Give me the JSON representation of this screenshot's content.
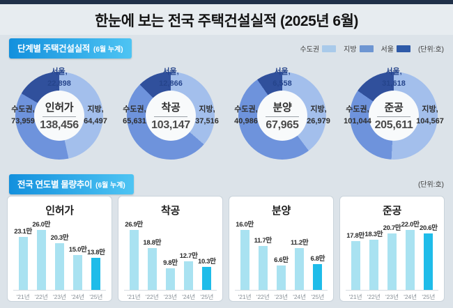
{
  "page": {
    "top_title": "한눈에 보는 전국 주택건설실적 (2025년 6월)"
  },
  "colors": {
    "background": "#DCE3E9",
    "top_strip": "#203049",
    "header_gradient_left": "#1390DD",
    "header_gradient_right": "#4EC4F3",
    "donut_light": "#A3BFEC",
    "donut_mid": "#6E93DC",
    "donut_dark": "#30509C",
    "bar_normal": "#A9E2F1",
    "bar_highlight": "#1FBCE9"
  },
  "section_stage": {
    "title": "단계별 주택건설실적",
    "subtitle": "(6월 누계)",
    "unit": "(단위:호)",
    "legend": [
      {
        "label": "수도권",
        "color": "#A9CAEA"
      },
      {
        "label": "지방",
        "color": "#6E96D2"
      },
      {
        "label": "서울",
        "color": "#2E5AA8"
      }
    ]
  },
  "section_trend": {
    "title": "전국 연도별 물량추이",
    "subtitle": "(6월 누계)",
    "unit": "(단위:호)"
  },
  "chart_data": [
    {
      "type": "donut",
      "name": "인허가",
      "total": 138456,
      "total_display": "138,456",
      "seoul": {
        "label": "서울,",
        "value": 22898,
        "display": "22,898"
      },
      "sudogwon": {
        "label": "수도권,",
        "value": 73959,
        "display": "73,959"
      },
      "jibang": {
        "label": "지방,",
        "value": 64497,
        "display": "64,497"
      }
    },
    {
      "type": "donut",
      "name": "착공",
      "total": 103147,
      "total_display": "103,147",
      "seoul": {
        "label": "서울,",
        "value": 12866,
        "display": "12,866"
      },
      "sudogwon": {
        "label": "수도권,",
        "value": 65631,
        "display": "65,631"
      },
      "jibang": {
        "label": "지방,",
        "value": 37516,
        "display": "37,516"
      }
    },
    {
      "type": "donut",
      "name": "분양",
      "total": 67965,
      "total_display": "67,965",
      "seoul": {
        "label": "서울,",
        "value": 6558,
        "display": "6,558"
      },
      "sudogwon": {
        "label": "수도권,",
        "value": 40986,
        "display": "40,986"
      },
      "jibang": {
        "label": "지방,",
        "value": 26979,
        "display": "26,979"
      }
    },
    {
      "type": "donut",
      "name": "준공",
      "total": 205611,
      "total_display": "205,611",
      "seoul": {
        "label": "서울,",
        "value": 31618,
        "display": "31,618"
      },
      "sudogwon": {
        "label": "수도권,",
        "value": 101044,
        "display": "101,044"
      },
      "jibang": {
        "label": "지방,",
        "value": 104567,
        "display": "104,567"
      }
    },
    {
      "type": "bar",
      "name": "인허가",
      "ylabel": "만 호",
      "categories": [
        "'21년",
        "'22년",
        "'23년",
        "'24년",
        "'25년"
      ],
      "values": [
        23.1,
        26.0,
        20.3,
        15.0,
        13.8
      ],
      "labels": [
        "23.1만",
        "26.0만",
        "20.3만",
        "15.0만",
        "13.8만"
      ],
      "highlight_index": 4
    },
    {
      "type": "bar",
      "name": "착공",
      "ylabel": "만 호",
      "categories": [
        "'21년",
        "'22년",
        "'23년",
        "'24년",
        "'25년"
      ],
      "values": [
        26.9,
        18.8,
        9.8,
        12.7,
        10.3
      ],
      "labels": [
        "26.9만",
        "18.8만",
        "9.8만",
        "12.7만",
        "10.3만"
      ],
      "highlight_index": 4
    },
    {
      "type": "bar",
      "name": "분양",
      "ylabel": "만 호",
      "categories": [
        "'21년",
        "'22년",
        "'23년",
        "'24년",
        "'25년"
      ],
      "values": [
        16.0,
        11.7,
        6.6,
        11.2,
        6.8
      ],
      "labels": [
        "16.0만",
        "11.7만",
        "6.6만",
        "11.2만",
        "6.8만"
      ],
      "highlight_index": 4
    },
    {
      "type": "bar",
      "name": "준공",
      "ylabel": "만 호",
      "categories": [
        "'21년",
        "'22년",
        "'23년",
        "'24년",
        "'25년"
      ],
      "values": [
        17.8,
        18.3,
        20.7,
        22.0,
        20.6
      ],
      "labels": [
        "17.8만",
        "18.3만",
        "20.7만",
        "22.0만",
        "20.6만"
      ],
      "highlight_index": 4
    }
  ]
}
